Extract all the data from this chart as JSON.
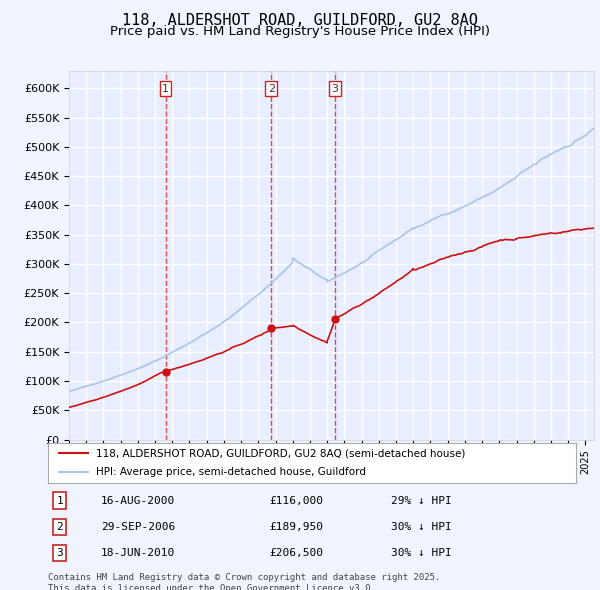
{
  "title": "118, ALDERSHOT ROAD, GUILDFORD, GU2 8AQ",
  "subtitle": "Price paid vs. HM Land Registry's House Price Index (HPI)",
  "legend_property": "118, ALDERSHOT ROAD, GUILDFORD, GU2 8AQ (semi-detached house)",
  "legend_hpi": "HPI: Average price, semi-detached house, Guildford",
  "transactions": [
    {
      "num": 1,
      "date_x": 2000.62,
      "price": 116000,
      "label": "16-AUG-2000",
      "pct": "29%"
    },
    {
      "num": 2,
      "date_x": 2006.75,
      "price": 189950,
      "label": "29-SEP-2006",
      "pct": "30%"
    },
    {
      "num": 3,
      "date_x": 2010.46,
      "price": 206500,
      "label": "18-JUN-2010",
      "pct": "30%"
    }
  ],
  "table_rows": [
    {
      "num": "1",
      "date": "16-AUG-2000",
      "price": "£116,000",
      "pct": "29% ↓ HPI"
    },
    {
      "num": "2",
      "date": "29-SEP-2006",
      "price": "£189,950",
      "pct": "30% ↓ HPI"
    },
    {
      "num": "3",
      "date": "18-JUN-2010",
      "price": "£206,500",
      "pct": "30% ↓ HPI"
    }
  ],
  "footer": "Contains HM Land Registry data © Crown copyright and database right 2025.\nThis data is licensed under the Open Government Licence v3.0.",
  "xlim": [
    1995,
    2025.5
  ],
  "ylim": [
    0,
    630000
  ],
  "background_color": "#f0f4ff",
  "plot_background": "#e8eeff",
  "grid_color": "#ffffff",
  "hpi_color": "#aac4e8",
  "property_color": "#cc1111",
  "marker_color": "#cc1111",
  "transaction_line_color": "#cc2222",
  "title_fontsize": 11,
  "subtitle_fontsize": 9.5
}
